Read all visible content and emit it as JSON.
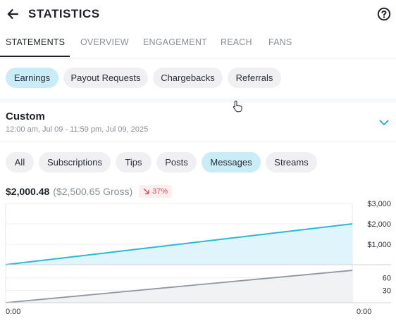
{
  "header": {
    "title": "STATISTICS"
  },
  "tabs": [
    {
      "label": "STATEMENTS",
      "active": true
    },
    {
      "label": "OVERVIEW"
    },
    {
      "label": "ENGAGEMENT"
    },
    {
      "label": "REACH"
    },
    {
      "label": "FANS"
    }
  ],
  "statement_types": [
    {
      "label": "Earnings",
      "active": true
    },
    {
      "label": "Payout Requests"
    },
    {
      "label": "Chargebacks"
    },
    {
      "label": "Referrals"
    }
  ],
  "period": {
    "title": "Custom",
    "range": "12:00 am, Jul 09 - 11:59 pm, Jul 09, 2025"
  },
  "filters": [
    {
      "label": "All"
    },
    {
      "label": "Subscriptions"
    },
    {
      "label": "Tips"
    },
    {
      "label": "Posts"
    },
    {
      "label": "Messages",
      "active": true
    },
    {
      "label": "Streams"
    }
  ],
  "summary": {
    "net": "$2,000.48",
    "gross": "($2,500.65 Gross)",
    "change": "37%"
  },
  "colors": {
    "accent": "#2bb8d8",
    "active_chip": "#c9ecf7",
    "negative": "#e0525b",
    "count_line": "#9096a0"
  },
  "chart_data": [
    {
      "type": "area",
      "x": [
        "0:00",
        "0:00"
      ],
      "x_tick_labels": [
        "0:00",
        "0:00"
      ],
      "series": [
        {
          "values": [
            0,
            2000.48
          ]
        }
      ],
      "y_tick_labels": [
        "$1,000",
        "$2,000",
        "$3,000"
      ],
      "y_ticks": [
        1000,
        2000,
        3000
      ],
      "ylim": [
        0,
        3000
      ],
      "grid": true
    },
    {
      "type": "area",
      "x": [
        "0:00",
        "0:00"
      ],
      "series": [
        {
          "values": [
            0,
            78
          ]
        }
      ],
      "y_tick_labels": [
        "30",
        "60"
      ],
      "y_ticks": [
        30,
        60
      ],
      "ylim": [
        0,
        90
      ],
      "grid": true
    }
  ]
}
